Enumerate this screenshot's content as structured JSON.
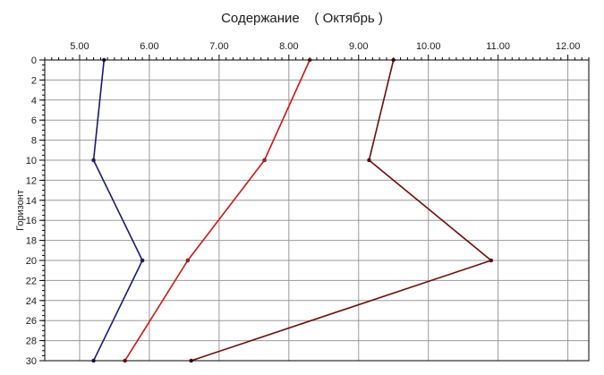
{
  "title": "Содержание    ( Октябрь )",
  "chart_data": {
    "type": "line",
    "title": "Содержание    ( Октябрь )",
    "xlabel": "",
    "ylabel": "Горизонт",
    "x_axis_position": "top",
    "y_axis_inverted": true,
    "xlim": [
      4.5,
      12.3
    ],
    "ylim": [
      0,
      30
    ],
    "x_ticks": [
      "5.00",
      "6.00",
      "7.00",
      "8.00",
      "9.00",
      "10.00",
      "11.00",
      "12.00"
    ],
    "y_ticks": [
      "0",
      "2",
      "4",
      "6",
      "8",
      "10",
      "12",
      "14",
      "16",
      "18",
      "20",
      "22",
      "24",
      "26",
      "28",
      "30"
    ],
    "grid": true,
    "legend": "none",
    "series": [
      {
        "color": "#1a1a6e",
        "points": [
          {
            "x": 5.35,
            "y": 0
          },
          {
            "x": 5.2,
            "y": 10
          },
          {
            "x": 5.9,
            "y": 20
          },
          {
            "x": 5.2,
            "y": 30
          }
        ]
      },
      {
        "color": "#cc1414",
        "points": [
          {
            "x": 8.3,
            "y": 0
          },
          {
            "x": 7.65,
            "y": 10
          },
          {
            "x": 6.55,
            "y": 20
          },
          {
            "x": 5.65,
            "y": 30
          }
        ]
      },
      {
        "color": "#6b0d0d",
        "points": [
          {
            "x": 9.5,
            "y": 0
          },
          {
            "x": 9.15,
            "y": 10
          },
          {
            "x": 10.9,
            "y": 20
          },
          {
            "x": 6.6,
            "y": 30
          }
        ]
      }
    ]
  }
}
